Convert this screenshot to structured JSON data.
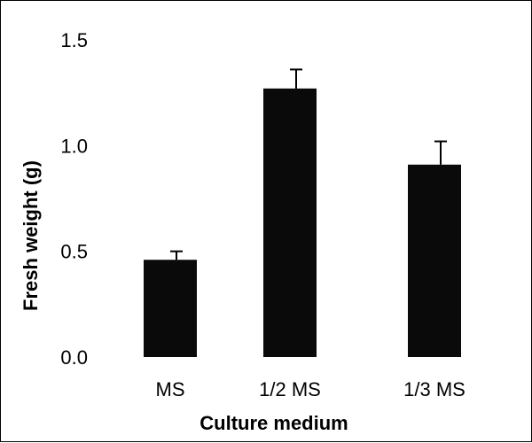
{
  "chart_data": {
    "type": "bar",
    "categories": [
      "MS",
      "1/2 MS",
      "1/3 MS"
    ],
    "values": [
      0.46,
      1.27,
      0.91
    ],
    "errors": [
      0.04,
      0.09,
      0.11
    ],
    "title": "",
    "xlabel": "Culture medium",
    "ylabel": "Fresh weight (g)",
    "ylim": [
      0,
      1.5
    ],
    "yticks": [
      "0.0",
      "0.5",
      "1.0",
      "1.5"
    ],
    "grid": false,
    "legend": "none",
    "bar_color": "#0a0a0a"
  }
}
